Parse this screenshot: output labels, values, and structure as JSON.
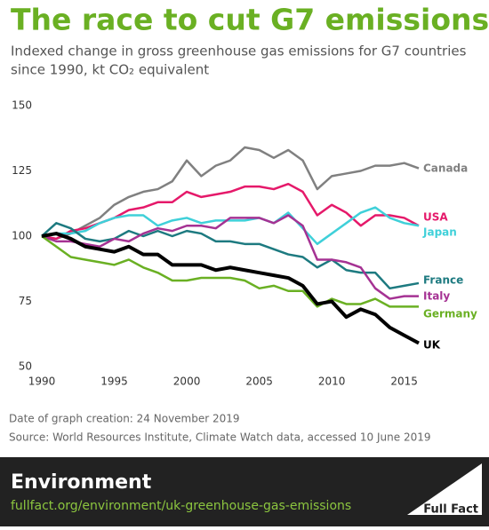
{
  "chart_data": {
    "type": "line",
    "title": "The race to cut G7 emissions",
    "subtitle": [
      "Indexed change in gross greenhouse gas emissions for G7 countries",
      "since 1990, kt CO₂ equivalent"
    ],
    "x": [
      1990,
      1991,
      1992,
      1993,
      1994,
      1995,
      1996,
      1997,
      1998,
      1999,
      2000,
      2001,
      2002,
      2003,
      2004,
      2005,
      2006,
      2007,
      2008,
      2009,
      2010,
      2011,
      2012,
      2013,
      2014,
      2015,
      2016
    ],
    "xlim": [
      1990,
      2016
    ],
    "xticks": [
      1990,
      1995,
      2000,
      2005,
      2010,
      2015
    ],
    "ylim": [
      50,
      150
    ],
    "yticks": [
      50,
      75,
      100,
      125,
      150
    ],
    "grid": false,
    "series": [
      {
        "name": "Canada",
        "color": "#808080",
        "values": [
          100,
          99,
          101,
          104,
          107,
          112,
          115,
          117,
          118,
          121,
          129,
          123,
          127,
          129,
          134,
          133,
          130,
          133,
          129,
          118,
          123,
          124,
          125,
          127,
          127,
          128,
          126
        ]
      },
      {
        "name": "USA",
        "color": "#e5196a",
        "values": [
          100,
          99,
          102,
          103,
          105,
          107,
          110,
          111,
          113,
          113,
          117,
          115,
          116,
          117,
          119,
          119,
          118,
          120,
          117,
          108,
          112,
          109,
          104,
          108,
          108,
          107,
          104
        ]
      },
      {
        "name": "Japan",
        "color": "#3fd0d9",
        "values": [
          100,
          101,
          101,
          102,
          105,
          107,
          108,
          108,
          104,
          106,
          107,
          105,
          106,
          106,
          106,
          107,
          105,
          109,
          103,
          97,
          101,
          105,
          109,
          111,
          107,
          105,
          104
        ]
      },
      {
        "name": "France",
        "color": "#1d7a80",
        "values": [
          100,
          105,
          103,
          99,
          98,
          99,
          102,
          100,
          102,
          100,
          102,
          101,
          98,
          98,
          97,
          97,
          95,
          93,
          92,
          88,
          91,
          87,
          86,
          86,
          80,
          81,
          82
        ]
      },
      {
        "name": "Italy",
        "color": "#a53293",
        "values": [
          100,
          98,
          98,
          97,
          96,
          99,
          98,
          101,
          103,
          102,
          104,
          104,
          103,
          107,
          107,
          107,
          105,
          108,
          104,
          91,
          91,
          90,
          88,
          80,
          76,
          77,
          77
        ]
      },
      {
        "name": "Germany",
        "color": "#6ab023",
        "values": [
          100,
          96,
          92,
          91,
          90,
          89,
          91,
          88,
          86,
          83,
          83,
          84,
          84,
          84,
          83,
          80,
          81,
          79,
          79,
          73,
          76,
          74,
          74,
          76,
          73,
          73,
          73
        ]
      },
      {
        "name": "UK",
        "color": "#000000",
        "values": [
          100,
          101,
          99,
          96,
          95,
          94,
          96,
          93,
          93,
          89,
          89,
          89,
          87,
          88,
          87,
          86,
          85,
          84,
          81,
          74,
          75,
          69,
          72,
          70,
          65,
          62,
          59
        ]
      }
    ]
  },
  "notes": [
    "Date of graph creation: 24 November 2019",
    "Source: World Resources Institute, Climate Watch data, accessed 10 June 2019"
  ],
  "footer": {
    "section": "Environment",
    "url": "fullfact.org/environment/uk-greenhouse-gas-emissions",
    "logo": "Full Fact"
  }
}
